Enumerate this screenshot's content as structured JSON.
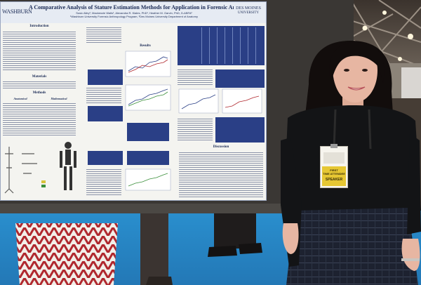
{
  "poster": {
    "title": "A Comparative Analysis of Stature Estimation Methods for Application in Forensic Anthropology",
    "authors": "Susic Alley¹, Mackenzie Walls¹, Alexandra R. Klales, PhD¹, Heather M. Garvin, PhD, D-ABFA²",
    "affiliation": "¹Washburn University Forensic Anthropology Program, ²Des Moines University Department of Anatomy",
    "logo_left": "WASHBURN",
    "logo_right_line1": "DES MOINES",
    "logo_right_line2": "UNIVERSITY",
    "sections": {
      "introduction": "Introduction",
      "materials": "Materials",
      "methods": "Methods",
      "anatomical": "Anatomical",
      "mathematical": "Mathematical",
      "results": "Results",
      "discussion": "Discussion"
    }
  },
  "badge": {
    "line1": "FIRST",
    "line2": "TIME ATTENDEE",
    "line3": "SPEAKER"
  },
  "colors": {
    "poster_bg": "#f4f4f0",
    "title_bar": "#e6ebf3",
    "table_blue": "#2a3f86",
    "floor": "#2d9ad6",
    "dress": "#131416",
    "hair": "#120d0c",
    "skin": "#e7b6a2"
  }
}
